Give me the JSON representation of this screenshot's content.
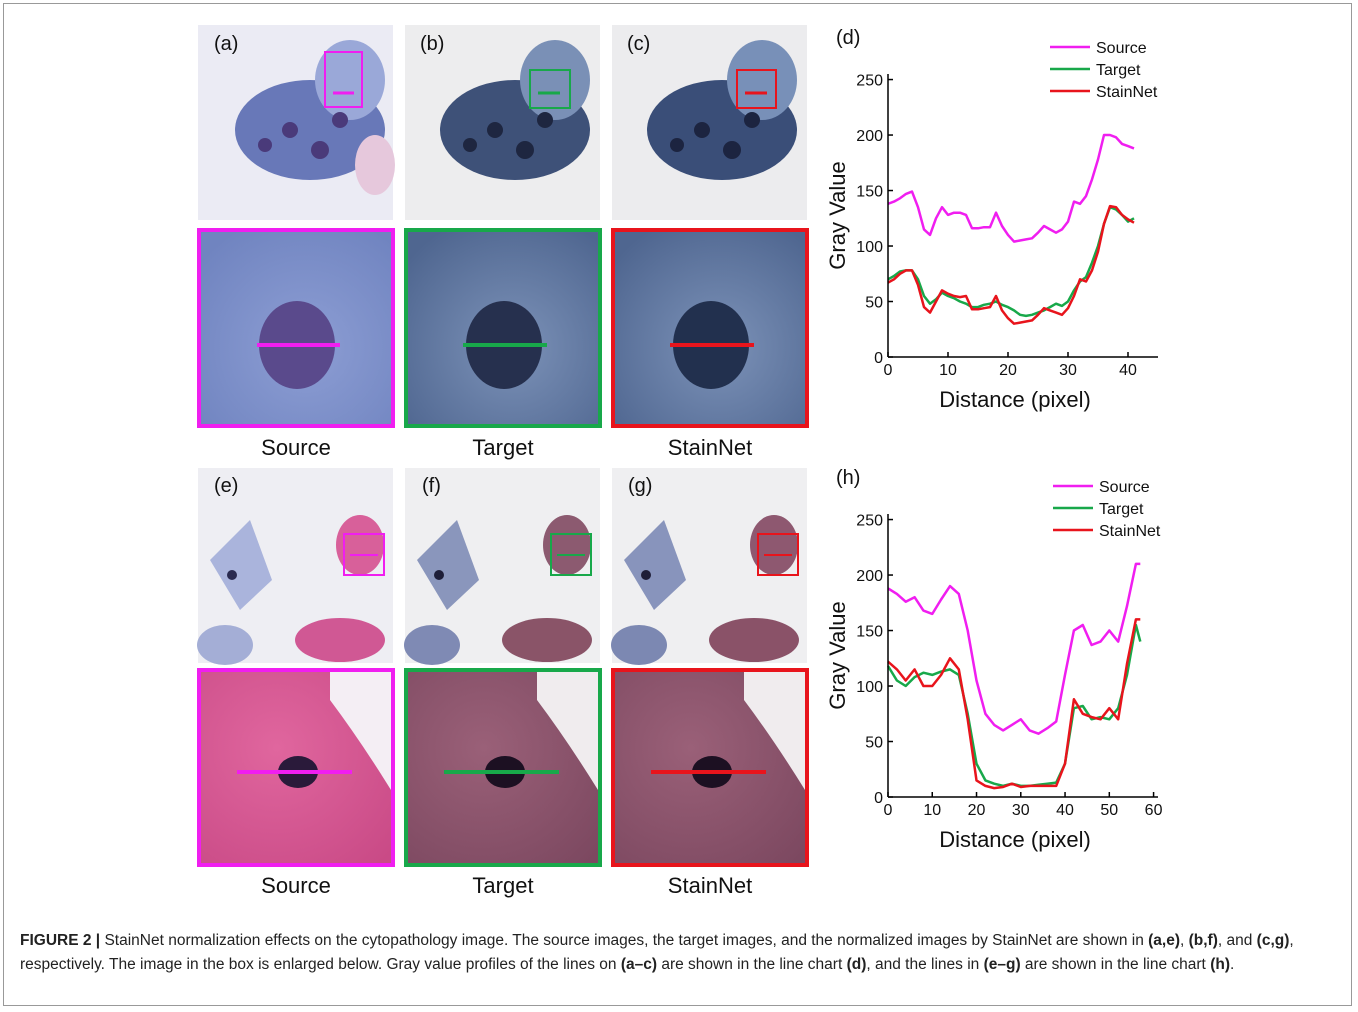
{
  "figure": {
    "rows": [
      {
        "labels": [
          "(a)",
          "(b)",
          "(c)"
        ],
        "captions": [
          "Source",
          "Target",
          "StainNet"
        ]
      },
      {
        "labels": [
          "(e)",
          "(f)",
          "(g)"
        ],
        "captions": [
          "Source",
          "Target",
          "StainNet"
        ]
      }
    ]
  },
  "caption": [
    {
      "text": "FIGURE 2 |",
      "bold": true
    },
    {
      "text": " StainNet normalization effects on the cytopathology image. The source images, the target images, and the normalized images by StainNet are shown in ",
      "bold": false
    },
    {
      "text": "(a,e)",
      "bold": true
    },
    {
      "text": ", ",
      "bold": false
    },
    {
      "text": "(b,f)",
      "bold": true
    },
    {
      "text": ", and ",
      "bold": false
    },
    {
      "text": "(c,g)",
      "bold": true
    },
    {
      "text": ", respectively. The image in the box is enlarged below. Gray value profiles of the lines on ",
      "bold": false
    },
    {
      "text": "(a–c)",
      "bold": true
    },
    {
      "text": " are shown in the line chart ",
      "bold": false
    },
    {
      "text": "(d)",
      "bold": true
    },
    {
      "text": ", and the lines in ",
      "bold": false
    },
    {
      "text": "(e–g)",
      "bold": true
    },
    {
      "text": " are shown in the line chart ",
      "bold": false
    },
    {
      "text": "(h)",
      "bold": true
    },
    {
      "text": ".",
      "bold": false
    }
  ],
  "chart_data": [
    {
      "type": "line",
      "panel_label": "(d)",
      "xlabel": "Distance (pixel)",
      "ylabel": "Gray Value",
      "x": [
        0,
        1,
        2,
        3,
        4,
        5,
        6,
        7,
        8,
        9,
        10,
        11,
        12,
        13,
        14,
        15,
        16,
        17,
        18,
        19,
        20,
        21,
        22,
        23,
        24,
        25,
        26,
        27,
        28,
        29,
        30,
        31,
        32,
        33,
        34,
        35,
        36,
        37,
        38,
        39,
        40,
        41
      ],
      "series": [
        {
          "name": "Source",
          "color": "#f01ef0",
          "values": [
            138,
            140,
            143,
            147,
            149,
            135,
            115,
            110,
            125,
            135,
            128,
            130,
            130,
            128,
            116,
            116,
            117,
            117,
            130,
            118,
            110,
            104,
            105,
            106,
            107,
            112,
            118,
            115,
            112,
            115,
            122,
            140,
            138,
            145,
            160,
            178,
            200,
            200,
            198,
            192,
            190,
            188
          ]
        },
        {
          "name": "Target",
          "color": "#18a84a",
          "values": [
            70,
            73,
            77,
            78,
            78,
            70,
            55,
            48,
            52,
            58,
            55,
            53,
            50,
            48,
            45,
            45,
            47,
            48,
            50,
            47,
            45,
            42,
            38,
            37,
            38,
            40,
            42,
            45,
            48,
            46,
            50,
            60,
            68,
            72,
            85,
            100,
            120,
            135,
            133,
            128,
            122,
            125
          ]
        },
        {
          "name": "StainNet",
          "color": "#e8141c",
          "values": [
            67,
            70,
            75,
            78,
            78,
            65,
            45,
            40,
            50,
            60,
            57,
            55,
            54,
            55,
            43,
            43,
            44,
            45,
            55,
            42,
            35,
            30,
            31,
            32,
            33,
            38,
            44,
            42,
            40,
            38,
            44,
            55,
            70,
            68,
            78,
            95,
            120,
            136,
            135,
            128,
            124,
            121
          ]
        }
      ],
      "xlim": [
        0,
        45
      ],
      "ylim": [
        0,
        255
      ],
      "xticks": [
        0,
        10,
        20,
        30,
        40
      ],
      "yticks": [
        0,
        50,
        100,
        150,
        200,
        250
      ]
    },
    {
      "type": "line",
      "panel_label": "(h)",
      "xlabel": "Distance (pixel)",
      "ylabel": "Gray Value",
      "x": [
        0,
        2,
        4,
        6,
        8,
        10,
        12,
        14,
        16,
        18,
        20,
        22,
        24,
        26,
        28,
        30,
        32,
        34,
        36,
        38,
        40,
        42,
        44,
        46,
        48,
        50,
        52,
        54,
        56,
        57
      ],
      "series": [
        {
          "name": "Source",
          "color": "#f01ef0",
          "values": [
            188,
            183,
            176,
            180,
            168,
            165,
            178,
            190,
            183,
            150,
            105,
            75,
            65,
            60,
            65,
            70,
            60,
            57,
            62,
            68,
            110,
            150,
            155,
            137,
            140,
            150,
            140,
            172,
            210,
            210
          ]
        },
        {
          "name": "Target",
          "color": "#18a84a",
          "values": [
            118,
            105,
            100,
            108,
            112,
            110,
            113,
            115,
            110,
            75,
            30,
            15,
            12,
            10,
            12,
            10,
            10,
            11,
            12,
            13,
            30,
            80,
            82,
            70,
            72,
            70,
            80,
            110,
            155,
            140
          ]
        },
        {
          "name": "StainNet",
          "color": "#e8141c",
          "values": [
            122,
            115,
            105,
            115,
            100,
            100,
            110,
            125,
            115,
            70,
            15,
            10,
            8,
            9,
            12,
            9,
            10,
            10,
            10,
            10,
            30,
            88,
            75,
            72,
            70,
            80,
            70,
            120,
            160,
            160
          ]
        }
      ],
      "xlim": [
        0,
        61
      ],
      "ylim": [
        0,
        255
      ],
      "xticks": [
        0,
        10,
        20,
        30,
        40,
        50,
        60
      ],
      "yticks": [
        0,
        50,
        100,
        150,
        200,
        250
      ]
    }
  ]
}
